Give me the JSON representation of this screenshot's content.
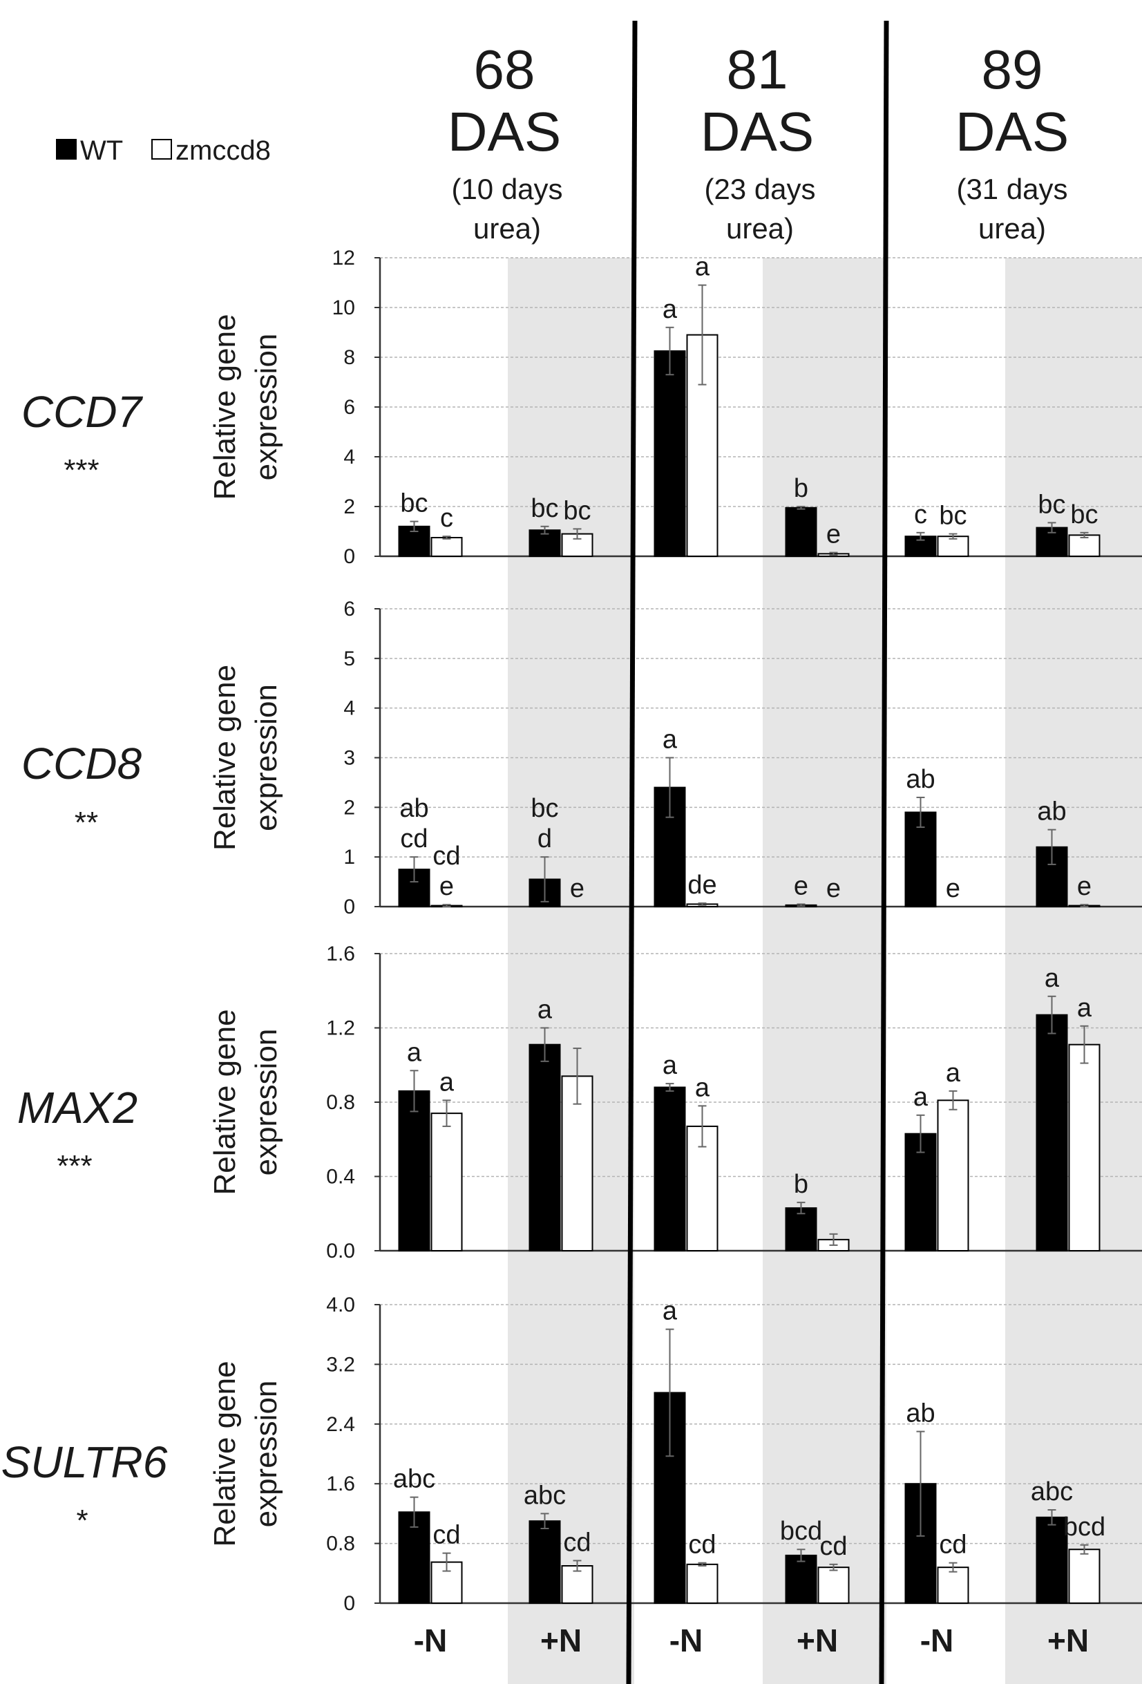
{
  "legend": {
    "wt": "WT",
    "mutant": "zmccd8",
    "wt_color": "#000000",
    "mutant_color": "#ffffff"
  },
  "time_points": [
    {
      "num": "68",
      "unit": "DAS",
      "sub1": "(10 days",
      "sub2": "urea)"
    },
    {
      "num": "81",
      "unit": "DAS",
      "sub1": "(23 days",
      "sub2": "urea)"
    },
    {
      "num": "89",
      "unit": "DAS",
      "sub1": "(31 days",
      "sub2": "urea)"
    }
  ],
  "conditions": [
    "-N",
    "+N",
    "-N",
    "+N",
    "-N",
    "+N"
  ],
  "y_axis_label_line1": "Relative gene",
  "y_axis_label_line2": "expression",
  "shade_color": "#e6e6e6",
  "chart_data": [
    {
      "type": "bar",
      "gene": "CCD7",
      "significance": "***",
      "ylim": [
        0,
        12
      ],
      "ticks": [
        "0",
        "2",
        "4",
        "6",
        "8",
        "10",
        "12"
      ],
      "tick_values": [
        0,
        2,
        4,
        6,
        8,
        10,
        12
      ],
      "categories": [
        "68 DAS -N",
        "68 DAS +N",
        "81 DAS -N",
        "81 DAS +N",
        "89 DAS -N",
        "89 DAS +N"
      ],
      "series": [
        {
          "name": "WT",
          "values": [
            1.2,
            1.05,
            8.25,
            1.95,
            0.8,
            1.15
          ],
          "errors": [
            0.2,
            0.15,
            0.95,
            0.05,
            0.15,
            0.2
          ],
          "letters": [
            "bc",
            "bc",
            "a",
            "b",
            "c",
            "bc"
          ]
        },
        {
          "name": "zmccd8",
          "values": [
            0.75,
            0.9,
            8.9,
            0.1,
            0.8,
            0.85
          ],
          "errors": [
            0.05,
            0.2,
            2.0,
            0.05,
            0.1,
            0.1
          ],
          "letters": [
            "c",
            "bc",
            "a",
            "e",
            "bc",
            "bc"
          ]
        }
      ]
    },
    {
      "type": "bar",
      "gene": "CCD8",
      "significance": "**",
      "ylim": [
        0,
        6
      ],
      "ticks": [
        "0",
        "1",
        "2",
        "3",
        "4",
        "5",
        "6"
      ],
      "tick_values": [
        0,
        1,
        2,
        3,
        4,
        5,
        6
      ],
      "categories": [
        "68 DAS -N",
        "68 DAS +N",
        "81 DAS -N",
        "81 DAS +N",
        "89 DAS -N",
        "89 DAS +N"
      ],
      "series": [
        {
          "name": "WT",
          "values": [
            0.75,
            0.55,
            2.4,
            0.03,
            1.9,
            1.2
          ],
          "errors": [
            0.25,
            0.45,
            0.6,
            0.02,
            0.3,
            0.35
          ],
          "letters": [
            "ab\ncd",
            "bc\nd",
            "a",
            "e",
            "ab",
            "ab"
          ]
        },
        {
          "name": "zmccd8",
          "values": [
            0.02,
            0.0,
            0.05,
            0.0,
            0.0,
            0.02
          ],
          "errors": [
            0.02,
            0.0,
            0.02,
            0.0,
            0.0,
            0.02
          ],
          "letters": [
            "cd\ne",
            "e",
            "de",
            "e",
            "e",
            "e"
          ]
        }
      ]
    },
    {
      "type": "bar",
      "gene": "MAX2",
      "significance": "***",
      "ylim": [
        0,
        1.6
      ],
      "ticks": [
        "0.0",
        "0.4",
        "0.8",
        "1.2",
        "1.6"
      ],
      "tick_values": [
        0,
        0.4,
        0.8,
        1.2,
        1.6
      ],
      "categories": [
        "68 DAS -N",
        "68 DAS +N",
        "81 DAS -N",
        "81 DAS +N",
        "89 DAS -N",
        "89 DAS +N"
      ],
      "series": [
        {
          "name": "WT",
          "values": [
            0.86,
            1.11,
            0.88,
            0.23,
            0.63,
            1.27
          ],
          "errors": [
            0.11,
            0.09,
            0.02,
            0.03,
            0.1,
            0.1
          ],
          "letters": [
            "a",
            "a",
            "a",
            "b",
            "a",
            "a"
          ]
        },
        {
          "name": "zmccd8",
          "values": [
            0.74,
            0.94,
            0.67,
            0.06,
            0.81,
            1.11
          ],
          "errors": [
            0.07,
            0.15,
            0.11,
            0.03,
            0.05,
            0.1
          ],
          "letters": [
            "a",
            "",
            "a",
            "",
            "a",
            "a"
          ]
        }
      ]
    },
    {
      "type": "bar",
      "gene": "SULTR6",
      "significance": "*",
      "ylim": [
        0,
        4.0
      ],
      "ticks": [
        "0",
        "0.8",
        "1.6",
        "2.4",
        "3.2",
        "4.0"
      ],
      "tick_values": [
        0,
        0.8,
        1.6,
        2.4,
        3.2,
        4.0
      ],
      "categories": [
        "68 DAS -N",
        "68 DAS +N",
        "81 DAS -N",
        "81 DAS +N",
        "89 DAS -N",
        "89 DAS +N"
      ],
      "series": [
        {
          "name": "WT",
          "values": [
            1.22,
            1.1,
            2.82,
            0.64,
            1.6,
            1.15
          ],
          "errors": [
            0.2,
            0.1,
            0.85,
            0.08,
            0.7,
            0.1
          ],
          "letters": [
            "abc",
            "abc",
            "a",
            "bcd",
            "ab",
            "abc"
          ]
        },
        {
          "name": "zmccd8",
          "values": [
            0.55,
            0.5,
            0.52,
            0.48,
            0.48,
            0.72
          ],
          "errors": [
            0.12,
            0.07,
            0.02,
            0.04,
            0.06,
            0.06
          ],
          "letters": [
            "cd",
            "cd",
            "cd",
            "cd",
            "cd",
            "bcd"
          ]
        }
      ]
    }
  ]
}
